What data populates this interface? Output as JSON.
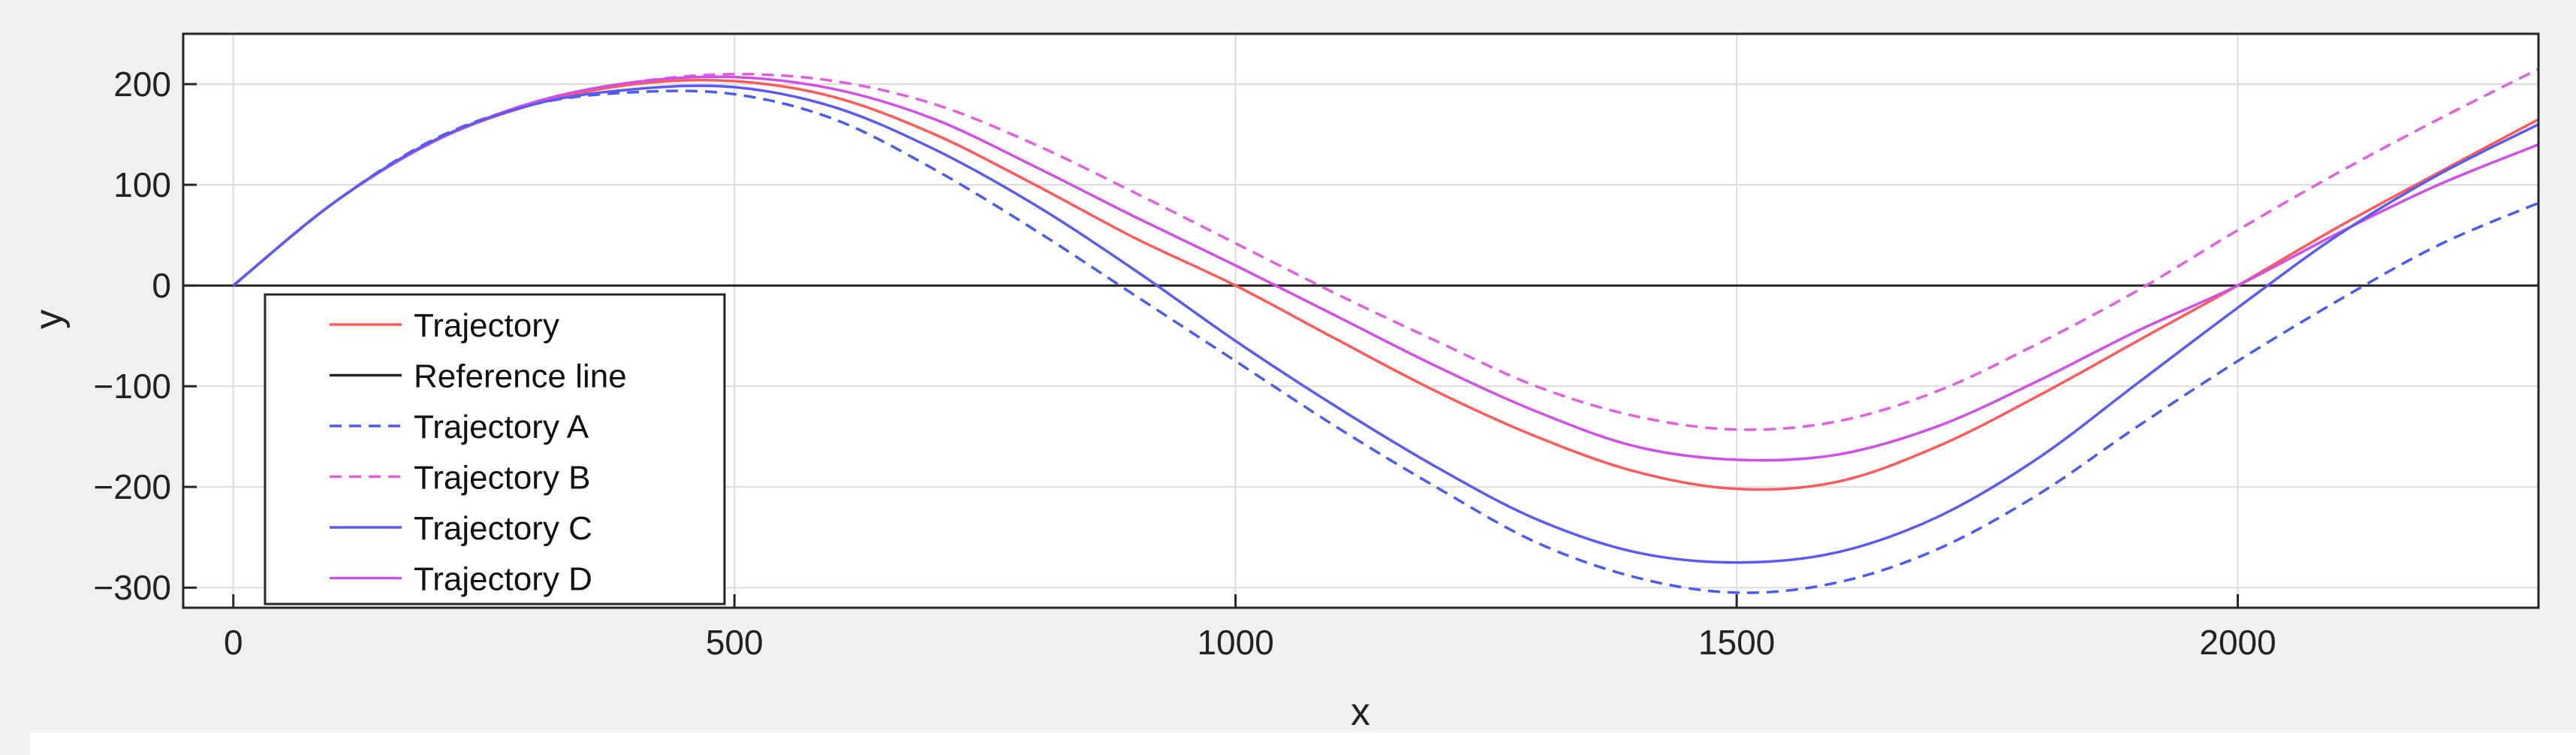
{
  "chart_data": {
    "type": "line",
    "title": "",
    "xlabel": "x",
    "ylabel": "y",
    "xlim": [
      -50,
      2300
    ],
    "ylim": [
      -320,
      250
    ],
    "xticks": [
      0,
      500,
      1000,
      1500,
      2000
    ],
    "xtick_labels": [
      "0",
      "500",
      "1000",
      "1500",
      "2000"
    ],
    "yticks": [
      200,
      100,
      0,
      -100,
      -200,
      -300
    ],
    "ytick_labels": [
      "200",
      "100",
      "0",
      "−100",
      "−200",
      "−300"
    ],
    "grid": true,
    "legend_position": "bottom-left",
    "series": [
      {
        "name": "Trajectory",
        "color": "#ff5a5a",
        "dash": "solid",
        "x": [
          0,
          100,
          200,
          300,
          400,
          500,
          600,
          700,
          800,
          900,
          1000,
          1100,
          1200,
          1300,
          1400,
          1500,
          1600,
          1700,
          1800,
          1900,
          2000,
          2100,
          2200,
          2300
        ],
        "y": [
          0,
          82,
          143,
          180,
          200,
          203,
          187,
          150,
          100,
          47,
          0,
          -53,
          -105,
          -150,
          -185,
          -202,
          -195,
          -160,
          -110,
          -55,
          0,
          58,
          112,
          165
        ]
      },
      {
        "name": "Reference line",
        "color": "#222222",
        "dash": "solid",
        "x": [
          -50,
          2300
        ],
        "y": [
          0,
          0
        ]
      },
      {
        "name": "Trajectory A",
        "color": "#4a5cf0",
        "dash": "dashed",
        "x": [
          0,
          100,
          200,
          300,
          400,
          500,
          600,
          700,
          800,
          900,
          1000,
          1100,
          1200,
          1300,
          1400,
          1500,
          1600,
          1700,
          1800,
          1900,
          2000,
          2100,
          2200,
          2300
        ],
        "y": [
          0,
          82,
          145,
          180,
          192,
          190,
          165,
          115,
          55,
          -10,
          -75,
          -140,
          -200,
          -255,
          -290,
          -305,
          -295,
          -262,
          -208,
          -140,
          -75,
          -15,
          40,
          82
        ]
      },
      {
        "name": "Trajectory B",
        "color": "#e060e0",
        "dash": "dashed",
        "x": [
          0,
          100,
          200,
          300,
          400,
          500,
          600,
          700,
          800,
          900,
          1000,
          1100,
          1200,
          1300,
          1400,
          1500,
          1600,
          1700,
          1800,
          1900,
          2000,
          2100,
          2200,
          2300
        ],
        "y": [
          0,
          82,
          143,
          182,
          202,
          210,
          203,
          180,
          140,
          92,
          42,
          -8,
          -55,
          -100,
          -130,
          -143,
          -135,
          -105,
          -58,
          -5,
          55,
          112,
          165,
          215
        ]
      },
      {
        "name": "Trajectory C",
        "color": "#5a5af5",
        "dash": "solid",
        "x": [
          0,
          100,
          200,
          300,
          400,
          500,
          600,
          700,
          800,
          900,
          1000,
          1100,
          1200,
          1300,
          1400,
          1500,
          1600,
          1700,
          1800,
          1900,
          2000,
          2100,
          2200,
          2300
        ],
        "y": [
          0,
          82,
          144,
          180,
          195,
          197,
          177,
          135,
          80,
          15,
          -55,
          -120,
          -180,
          -232,
          -265,
          -275,
          -265,
          -230,
          -172,
          -97,
          -22,
          50,
          110,
          160
        ]
      },
      {
        "name": "Trajectory D",
        "color": "#d050e6",
        "dash": "solid",
        "x": [
          0,
          100,
          200,
          300,
          400,
          500,
          600,
          700,
          800,
          900,
          1000,
          1100,
          1200,
          1300,
          1400,
          1500,
          1600,
          1700,
          1800,
          1900,
          2000,
          2100,
          2200,
          2300
        ],
        "y": [
          0,
          82,
          143,
          182,
          202,
          207,
          195,
          165,
          118,
          68,
          20,
          -30,
          -80,
          -125,
          -160,
          -173,
          -168,
          -140,
          -95,
          -45,
          0,
          52,
          100,
          140
        ]
      }
    ]
  }
}
